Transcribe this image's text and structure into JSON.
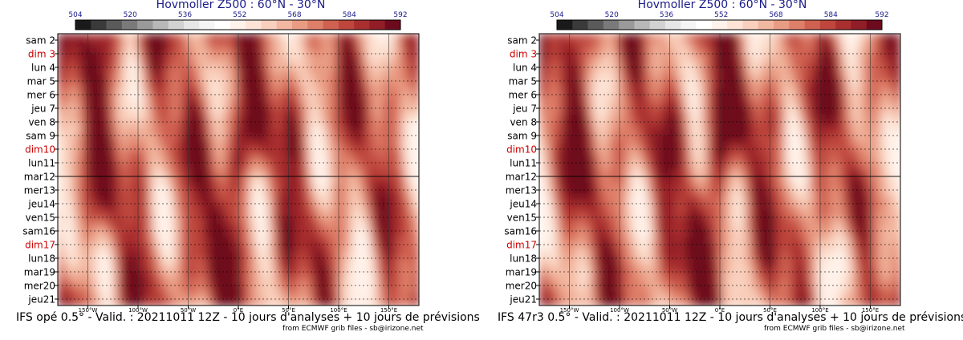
{
  "chart_data": [
    {
      "type": "heatmap",
      "title": "Hovmoller Z500 : 60°N - 30°N",
      "colorbar_ticks": [
        "504",
        "520",
        "536",
        "552",
        "568",
        "584",
        "592"
      ],
      "colorbar_colors": [
        "#1a1a1a",
        "#3a3a3a",
        "#5a5a5a",
        "#7a7a7a",
        "#9a9a9a",
        "#b8b8b8",
        "#d2d2d2",
        "#e6e6e6",
        "#f4f4f4",
        "#ffffff",
        "#fff2ea",
        "#fde4d6",
        "#f9d0bd",
        "#f2b7a0",
        "#e99c84",
        "#de7f69",
        "#cf6151",
        "#be463d",
        "#a92f2f",
        "#911d26",
        "#6e0a1e"
      ],
      "y_labels": [
        {
          "text": "sam 2",
          "weekend": false
        },
        {
          "text": "dim 3",
          "weekend": true
        },
        {
          "text": "lun 4",
          "weekend": false
        },
        {
          "text": "mar 5",
          "weekend": false
        },
        {
          "text": "mer 6",
          "weekend": false
        },
        {
          "text": "jeu 7",
          "weekend": false
        },
        {
          "text": "ven 8",
          "weekend": false
        },
        {
          "text": "sam 9",
          "weekend": false
        },
        {
          "text": "dim10",
          "weekend": true
        },
        {
          "text": "lun11",
          "weekend": false
        },
        {
          "text": "mar12",
          "weekend": false
        },
        {
          "text": "mer13",
          "weekend": false
        },
        {
          "text": "jeu14",
          "weekend": false
        },
        {
          "text": "ven15",
          "weekend": false
        },
        {
          "text": "sam16",
          "weekend": false
        },
        {
          "text": "dim17",
          "weekend": true
        },
        {
          "text": "lun18",
          "weekend": false
        },
        {
          "text": "mar19",
          "weekend": false
        },
        {
          "text": "mer20",
          "weekend": false
        },
        {
          "text": "jeu21",
          "weekend": false
        }
      ],
      "x_ticks": [
        "150°W",
        "100°W",
        "50°W",
        "0°E",
        "50°E",
        "100°E",
        "150°E"
      ],
      "analysis_boundary": "mar12",
      "weekend_color": "#cc0000",
      "caption": "IFS opé 0.5° - Valid. : 20211011 12Z - 10 jours d'analyses + 10 jours de prévisions",
      "credit": "from ECMWF grib files - sb@irizone.net"
    },
    {
      "type": "heatmap",
      "title": "Hovmoller Z500 : 60°N - 30°N",
      "colorbar_ticks": [
        "504",
        "520",
        "536",
        "552",
        "568",
        "584",
        "592"
      ],
      "colorbar_colors": [
        "#1a1a1a",
        "#3a3a3a",
        "#5a5a5a",
        "#7a7a7a",
        "#9a9a9a",
        "#b8b8b8",
        "#d2d2d2",
        "#e6e6e6",
        "#f4f4f4",
        "#ffffff",
        "#fff2ea",
        "#fde4d6",
        "#f9d0bd",
        "#f2b7a0",
        "#e99c84",
        "#de7f69",
        "#cf6151",
        "#be463d",
        "#a92f2f",
        "#911d26",
        "#6e0a1e"
      ],
      "y_labels": [
        {
          "text": "sam 2",
          "weekend": false
        },
        {
          "text": "dim 3",
          "weekend": true
        },
        {
          "text": "lun 4",
          "weekend": false
        },
        {
          "text": "mar 5",
          "weekend": false
        },
        {
          "text": "mer 6",
          "weekend": false
        },
        {
          "text": "jeu 7",
          "weekend": false
        },
        {
          "text": "ven 8",
          "weekend": false
        },
        {
          "text": "sam 9",
          "weekend": false
        },
        {
          "text": "dim10",
          "weekend": true
        },
        {
          "text": "lun11",
          "weekend": false
        },
        {
          "text": "mar12",
          "weekend": false
        },
        {
          "text": "mer13",
          "weekend": false
        },
        {
          "text": "jeu14",
          "weekend": false
        },
        {
          "text": "ven15",
          "weekend": false
        },
        {
          "text": "sam16",
          "weekend": false
        },
        {
          "text": "dim17",
          "weekend": true
        },
        {
          "text": "lun18",
          "weekend": false
        },
        {
          "text": "mar19",
          "weekend": false
        },
        {
          "text": "mer20",
          "weekend": false
        },
        {
          "text": "jeu21",
          "weekend": false
        }
      ],
      "x_ticks": [
        "150°W",
        "100°W",
        "50°W",
        "0°E",
        "50°E",
        "100°E",
        "150°E"
      ],
      "analysis_boundary": "mar12",
      "weekend_color": "#cc0000",
      "caption": "IFS 47r3 0.5° - Valid. : 20211011 12Z - 10 jours d'analyses + 10 jours de prévisions",
      "credit": "from ECMWF grib files - sb@irizone.net"
    }
  ]
}
